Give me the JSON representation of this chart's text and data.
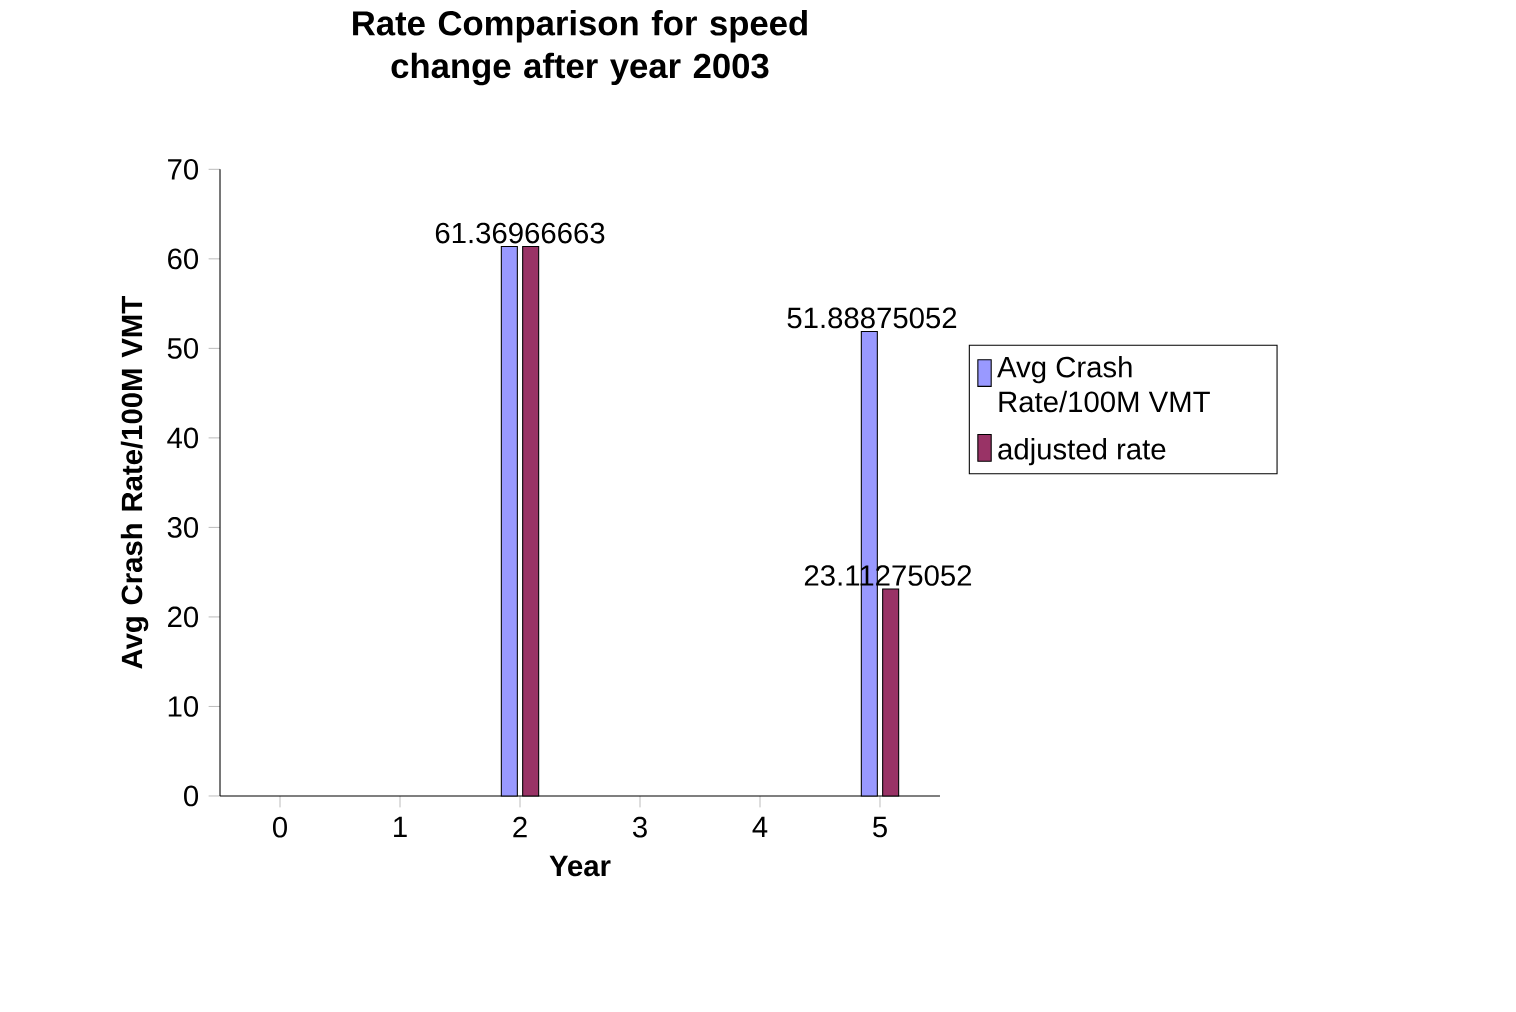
{
  "chart_data": {
    "type": "bar",
    "title": "Rate Comparison for speed change after year 2003",
    "xlabel": "Year",
    "ylabel": "Avg Crash Rate/100M VMT",
    "categories": [
      "0",
      "1",
      "2",
      "3",
      "4",
      "5"
    ],
    "series": [
      {
        "name": "Avg Crash Rate/100M VMT",
        "color": "#9999ff",
        "values": [
          null,
          null,
          61.36966663,
          null,
          null,
          51.88875052
        ],
        "value_labels": [
          null,
          null,
          "61.36966663",
          null,
          null,
          "51.88875052"
        ]
      },
      {
        "name": "adjusted rate",
        "color": "#993366",
        "values": [
          null,
          null,
          61.36966663,
          null,
          null,
          23.11275052
        ],
        "value_labels": [
          null,
          null,
          null,
          null,
          null,
          "23.11275052"
        ]
      }
    ],
    "ylim": [
      0,
      70
    ],
    "yticks": [
      0,
      10,
      20,
      30,
      40,
      50,
      60,
      70
    ],
    "legend": "right"
  }
}
